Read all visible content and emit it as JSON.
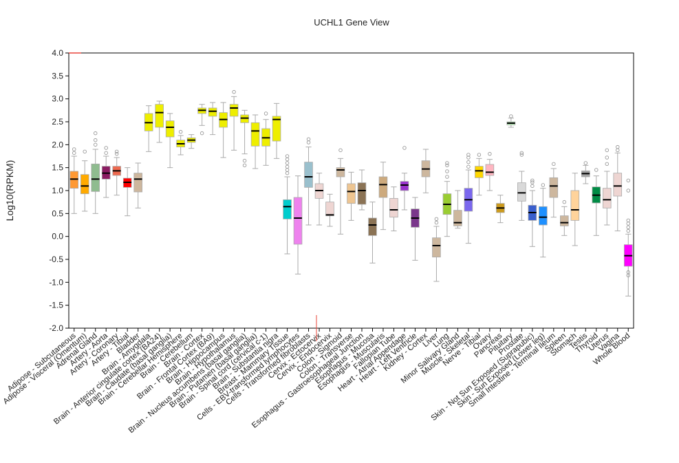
{
  "chart_data": {
    "type": "box",
    "title": "UCHL1 Gene View",
    "ylabel": "Log10(RPKM)",
    "xlabel": "",
    "ylim": [
      -2.0,
      4.0
    ],
    "yticks": [
      "-2.0",
      "-1.5",
      "-1.0",
      "-0.5",
      "0.0",
      "0.5",
      "1.0",
      "1.5",
      "2.0",
      "2.5",
      "3.0",
      "3.5",
      "4.0"
    ],
    "grid": false,
    "categories": [
      {
        "label": "Adipose - Subcutaneous",
        "color": "#ff9933",
        "q1": 1.05,
        "median": 1.25,
        "q3": 1.42,
        "low": 0.5,
        "high": 1.75,
        "outliers": [
          1.82,
          1.9
        ]
      },
      {
        "label": "Adipose - Visceral (Omentum)",
        "color": "#ffaa00",
        "q1": 0.93,
        "median": 1.1,
        "q3": 1.35,
        "low": 0.55,
        "high": 1.65,
        "outliers": [
          1.85
        ]
      },
      {
        "label": "Adrenal Gland",
        "color": "#8fbc8f",
        "q1": 0.98,
        "median": 1.25,
        "q3": 1.58,
        "low": 0.5,
        "high": 1.9,
        "outliers": [
          2.0,
          2.1,
          2.25
        ]
      },
      {
        "label": "Artery - Aorta",
        "color": "#8b1c62",
        "q1": 1.25,
        "median": 1.38,
        "q3": 1.53,
        "low": 0.85,
        "high": 1.75,
        "outliers": [
          1.82,
          1.93
        ]
      },
      {
        "label": "Artery - Coronary",
        "color": "#ee6a50",
        "q1": 1.33,
        "median": 1.43,
        "q3": 1.53,
        "low": 0.9,
        "high": 1.72,
        "outliers": [
          1.8,
          1.85
        ]
      },
      {
        "label": "Artery - Tibial",
        "color": "#ff0000",
        "q1": 1.07,
        "median": 1.18,
        "q3": 1.27,
        "low": 0.45,
        "high": 1.5,
        "outliers": []
      },
      {
        "label": "Bladder",
        "color": "#cdb79e",
        "q1": 0.97,
        "median": 1.25,
        "q3": 1.38,
        "low": 0.62,
        "high": 1.6,
        "outliers": []
      },
      {
        "label": "Brain - Amygdala",
        "color": "#eeee00",
        "q1": 2.3,
        "median": 2.48,
        "q3": 2.68,
        "low": 1.85,
        "high": 2.85,
        "outliers": []
      },
      {
        "label": "Brain - Anterior cingulate cortex (BA24)",
        "color": "#eeee00",
        "q1": 2.38,
        "median": 2.7,
        "q3": 2.88,
        "low": 2.05,
        "high": 2.95,
        "outliers": []
      },
      {
        "label": "Brain - Caudate (basal ganglia)",
        "color": "#eeee00",
        "q1": 2.17,
        "median": 2.38,
        "q3": 2.52,
        "low": 1.5,
        "high": 2.68,
        "outliers": []
      },
      {
        "label": "Brain - Cerebellar Hemisphere",
        "color": "#eeee00",
        "q1": 1.95,
        "median": 2.02,
        "q3": 2.1,
        "low": 1.78,
        "high": 2.2,
        "outliers": [
          2.28
        ]
      },
      {
        "label": "Brain - Cerebellum",
        "color": "#eeee00",
        "q1": 2.05,
        "median": 2.1,
        "q3": 2.15,
        "low": 1.92,
        "high": 2.22,
        "outliers": []
      },
      {
        "label": "Brain - Cortex",
        "color": "#eeee00",
        "q1": 2.68,
        "median": 2.75,
        "q3": 2.8,
        "low": 2.42,
        "high": 2.88,
        "outliers": [
          2.25
        ]
      },
      {
        "label": "Brain - Frontal Cortex (BA9)",
        "color": "#eeee00",
        "q1": 2.62,
        "median": 2.73,
        "q3": 2.8,
        "low": 2.22,
        "high": 2.92,
        "outliers": []
      },
      {
        "label": "Brain - Hippocampus",
        "color": "#eeee00",
        "q1": 2.38,
        "median": 2.55,
        "q3": 2.7,
        "low": 1.72,
        "high": 2.92,
        "outliers": []
      },
      {
        "label": "Brain - Hypothalamus",
        "color": "#eeee00",
        "q1": 2.62,
        "median": 2.8,
        "q3": 2.88,
        "low": 1.88,
        "high": 3.05,
        "outliers": [
          3.15
        ]
      },
      {
        "label": "Brain - Nucleus accumbens (basal ganglia)",
        "color": "#eeee00",
        "q1": 2.48,
        "median": 2.58,
        "q3": 2.65,
        "low": 1.8,
        "high": 2.75,
        "outliers": [
          1.65,
          1.55
        ]
      },
      {
        "label": "Brain - Putamen (basal ganglia)",
        "color": "#eeee00",
        "q1": 1.97,
        "median": 2.3,
        "q3": 2.48,
        "low": 1.48,
        "high": 2.65,
        "outliers": []
      },
      {
        "label": "Brain - Spinal cord (cervical c-1)",
        "color": "#eeee00",
        "q1": 1.97,
        "median": 2.15,
        "q3": 2.35,
        "low": 1.55,
        "high": 2.55,
        "outliers": [
          2.68
        ]
      },
      {
        "label": "Brain - Substantia nigra",
        "color": "#eeee00",
        "q1": 2.08,
        "median": 2.55,
        "q3": 2.62,
        "low": 1.7,
        "high": 2.9,
        "outliers": []
      },
      {
        "label": "Breast - Mammary Tissue",
        "color": "#00cdcd",
        "q1": 0.38,
        "median": 0.65,
        "q3": 0.8,
        "low": -0.38,
        "high": 1.3,
        "outliers": [
          1.38,
          1.45,
          1.52,
          1.6,
          1.68,
          1.75
        ]
      },
      {
        "label": "Cells - EBV-transformed lymphocytes",
        "color": "#ee82ee",
        "q1": -0.17,
        "median": 0.4,
        "q3": 0.85,
        "low": -0.82,
        "high": 1.32,
        "outliers": []
      },
      {
        "label": "Cells - Transformed fibroblasts",
        "color": "#9ac0cd",
        "q1": 1.07,
        "median": 1.3,
        "q3": 1.62,
        "low": 0.25,
        "high": 1.95,
        "outliers": [
          2.05,
          2.12
        ]
      },
      {
        "label": "Cervix - Ectocervix",
        "color": "#eed5d2",
        "q1": 0.83,
        "median": 1.0,
        "q3": 1.15,
        "low": 0.25,
        "high": 1.38,
        "outliers": []
      },
      {
        "label": "Cervix - Endocervix",
        "color": "#eed5d2",
        "q1": 0.45,
        "median": 0.47,
        "q3": 0.75,
        "low": 0.22,
        "high": 0.92,
        "outliers": []
      },
      {
        "label": "Colon - Sigmoid",
        "color": "#cdb79e",
        "q1": 1.3,
        "median": 1.45,
        "q3": 1.5,
        "low": 0.05,
        "high": 1.7,
        "outliers": [
          1.88
        ]
      },
      {
        "label": "Colon - Transverse",
        "color": "#eec591",
        "q1": 0.72,
        "median": 0.98,
        "q3": 1.15,
        "low": 0.35,
        "high": 1.4,
        "outliers": []
      },
      {
        "label": "Esophagus - Gastroesophageal Junction",
        "color": "#8b7355",
        "q1": 0.7,
        "median": 1.0,
        "q3": 1.17,
        "low": 0.58,
        "high": 1.45,
        "outliers": []
      },
      {
        "label": "Esophagus - Mucosa",
        "color": "#8b7355",
        "q1": 0.02,
        "median": 0.25,
        "q3": 0.4,
        "low": -0.58,
        "high": 0.75,
        "outliers": []
      },
      {
        "label": "Esophagus - Muscularis",
        "color": "#cdaa7d",
        "q1": 0.85,
        "median": 1.13,
        "q3": 1.3,
        "low": 0.15,
        "high": 1.62,
        "outliers": []
      },
      {
        "label": "Fallopian Tube",
        "color": "#eed5d2",
        "q1": 0.42,
        "median": 0.58,
        "q3": 0.83,
        "low": 0.12,
        "high": 1.08,
        "outliers": []
      },
      {
        "label": "Heart - Atrial Appendage",
        "color": "#9a32cd",
        "q1": 1.0,
        "median": 1.12,
        "q3": 1.2,
        "low": 0.58,
        "high": 1.38,
        "outliers": [
          1.93
        ]
      },
      {
        "label": "Heart - Left Ventricle",
        "color": "#7a378b",
        "q1": 0.2,
        "median": 0.4,
        "q3": 0.6,
        "low": -0.52,
        "high": 0.85,
        "outliers": []
      },
      {
        "label": "Kidney - Cortex",
        "color": "#cdb79e",
        "q1": 1.3,
        "median": 1.47,
        "q3": 1.65,
        "low": 0.95,
        "high": 1.9,
        "outliers": []
      },
      {
        "label": "Liver",
        "color": "#cdb79e",
        "q1": -0.45,
        "median": -0.2,
        "q3": -0.03,
        "low": -0.98,
        "high": 0.22,
        "outliers": [
          0.3,
          0.38
        ]
      },
      {
        "label": "Lung",
        "color": "#9acd32",
        "q1": 0.48,
        "median": 0.7,
        "q3": 0.93,
        "low": 0.0,
        "high": 1.2,
        "outliers": [
          1.3,
          1.42,
          1.55,
          1.6
        ]
      },
      {
        "label": "Minor Salivary Gland",
        "color": "#cdb79e",
        "q1": 0.23,
        "median": 0.3,
        "q3": 0.57,
        "low": 0.18,
        "high": 1.0,
        "outliers": []
      },
      {
        "label": "Muscle - Skeletal",
        "color": "#7a67ee",
        "q1": 0.55,
        "median": 0.8,
        "q3": 1.05,
        "low": -0.15,
        "high": 1.45,
        "outliers": [
          1.52,
          1.62,
          1.72,
          1.78
        ]
      },
      {
        "label": "Nerve - Tibial",
        "color": "#ffd700",
        "q1": 1.28,
        "median": 1.43,
        "q3": 1.53,
        "low": 0.9,
        "high": 1.7,
        "outliers": [
          1.78
        ]
      },
      {
        "label": "Ovary",
        "color": "#ffb6c1",
        "q1": 1.33,
        "median": 1.4,
        "q3": 1.57,
        "low": 1.0,
        "high": 1.68,
        "outliers": [
          1.8
        ]
      },
      {
        "label": "Pancreas",
        "color": "#cd9b1d",
        "q1": 0.52,
        "median": 0.62,
        "q3": 0.72,
        "low": 0.3,
        "high": 0.9,
        "outliers": []
      },
      {
        "label": "Pituitary",
        "color": "#b4eeb4",
        "q1": 2.43,
        "median": 2.47,
        "q3": 2.5,
        "low": 2.38,
        "high": 2.58,
        "outliers": [
          2.62
        ]
      },
      {
        "label": "Prostate",
        "color": "#d9d9d9",
        "q1": 0.77,
        "median": 0.95,
        "q3": 1.17,
        "low": 0.35,
        "high": 1.42,
        "outliers": [
          1.78,
          1.82
        ]
      },
      {
        "label": "Skin - Not Sun Exposed (Suprapubic)",
        "color": "#3a5fcd",
        "q1": 0.35,
        "median": 0.52,
        "q3": 0.68,
        "low": -0.22,
        "high": 1.0,
        "outliers": [
          1.1,
          1.18,
          1.22
        ]
      },
      {
        "label": "Skin - Sun Exposed (Lower leg)",
        "color": "#1e90ff",
        "q1": 0.25,
        "median": 0.42,
        "q3": 0.65,
        "low": -0.45,
        "high": 1.05,
        "outliers": [
          1.12
        ]
      },
      {
        "label": "Small Intestine - Terminal Ileum",
        "color": "#cdb79e",
        "q1": 0.85,
        "median": 1.1,
        "q3": 1.28,
        "low": 0.42,
        "high": 1.48,
        "outliers": [
          1.58
        ]
      },
      {
        "label": "Spleen",
        "color": "#cdb79e",
        "q1": 0.23,
        "median": 0.3,
        "q3": 0.45,
        "low": 0.02,
        "high": 0.65,
        "outliers": [
          0.75
        ]
      },
      {
        "label": "Stomach",
        "color": "#ffd39b",
        "q1": 0.35,
        "median": 0.58,
        "q3": 1.0,
        "low": -0.2,
        "high": 1.38,
        "outliers": []
      },
      {
        "label": "Testis",
        "color": "#a6a6a6",
        "q1": 1.3,
        "median": 1.37,
        "q3": 1.43,
        "low": 1.15,
        "high": 1.55,
        "outliers": [
          1.6
        ]
      },
      {
        "label": "Thyroid",
        "color": "#008b45",
        "q1": 0.73,
        "median": 0.9,
        "q3": 1.08,
        "low": 0.02,
        "high": 1.32,
        "outliers": [
          1.45
        ]
      },
      {
        "label": "Uterus",
        "color": "#eed5d2",
        "q1": 0.62,
        "median": 0.8,
        "q3": 1.05,
        "low": 0.25,
        "high": 1.42,
        "outliers": [
          1.58,
          1.72,
          1.88
        ]
      },
      {
        "label": "Vagina",
        "color": "#eed5d2",
        "q1": 0.88,
        "median": 1.1,
        "q3": 1.38,
        "low": 0.12,
        "high": 1.82,
        "outliers": [
          1.88,
          1.95
        ]
      },
      {
        "label": "Whole Blood",
        "color": "#ff00ff",
        "q1": -0.65,
        "median": -0.42,
        "q3": -0.18,
        "low": -1.3,
        "high": 0.05,
        "outliers": [
          0.12,
          0.2,
          0.28,
          0.35,
          1.0,
          1.22,
          -0.78,
          -0.85
        ]
      }
    ]
  }
}
